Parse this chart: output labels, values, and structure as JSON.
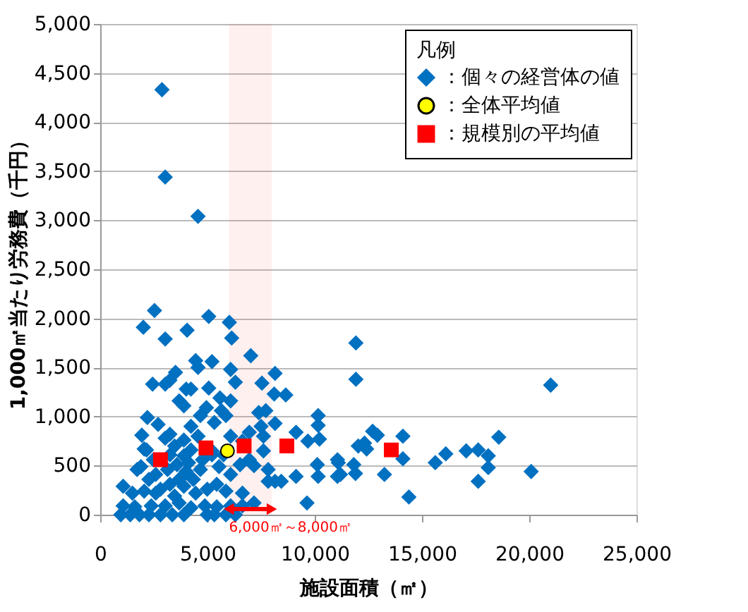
{
  "chart_data": {
    "type": "scatter",
    "xlabel": "施設面積（㎡）",
    "ylabel": "1,000㎡当たり労務費（千円）",
    "legend_title": "凡例",
    "xlim": [
      0,
      25000
    ],
    "xticks": [
      0,
      {
        "value": 5000,
        "label": "5,000"
      },
      {
        "value": 10000,
        "label": "10,000"
      },
      {
        "value": 15000,
        "label": "15,000"
      },
      {
        "value": 20000,
        "label": "20,000"
      },
      {
        "value": 25000,
        "label": "25,000"
      }
    ],
    "ylim": [
      0,
      5000
    ],
    "yticks": [
      0,
      500,
      {
        "value": 1000,
        "label": "1,000"
      },
      {
        "value": 1500,
        "label": "1,500"
      },
      {
        "value": 2000,
        "label": "2,000"
      },
      {
        "value": 2500,
        "label": "2,500"
      },
      {
        "value": 3000,
        "label": "3,000"
      },
      {
        "value": 3500,
        "label": "3,500"
      },
      {
        "value": 4000,
        "label": "4,000"
      },
      {
        "value": 4500,
        "label": "4,500"
      },
      {
        "value": 5000,
        "label": "5,000"
      }
    ],
    "grid": "y",
    "legend": "top right",
    "bands": [
      {
        "axis": "x",
        "from": 6000,
        "to": 8000,
        "label": "6,000㎡～8,000㎡",
        "color": "#ff0000"
      }
    ],
    "series": [
      {
        "name": "：個々の経営体の値",
        "color": "#0070c0",
        "marker": "diamond",
        "x": [
          2880,
          3030,
          4560,
          2530,
          2010,
          3030,
          5060,
          6020,
          4050,
          6130,
          4450,
          5210,
          4560,
          7020,
          6080,
          3510,
          2440,
          3030,
          3250,
          6300,
          8150,
          7540,
          5060,
          4010,
          4230,
          8110,
          8650,
          5580,
          3680,
          6080,
          3900,
          4950,
          5650,
          7390,
          7720,
          2200,
          4670,
          5860,
          2700,
          4230,
          5320,
          8150,
          10160,
          10160,
          9130,
          1940,
          3250,
          6950,
          7610,
          9680,
          10220,
          6630,
          2050,
          3470,
          3900,
          5210,
          7610,
          1070,
          1720,
          1900,
          2270,
          2590,
          3140,
          3580,
          4010,
          4340,
          4670,
          5540,
          6080,
          6520,
          7170,
          1500,
          2050,
          2810,
          3470,
          3900,
          4450,
          4990,
          5430,
          5860,
          6630,
          7830,
          8150,
          8440,
          9130,
          9640,
          7170,
          1070,
          1610,
          2380,
          3030,
          3680,
          4230,
          4880,
          5430,
          6080,
          6630,
          960,
          1400,
          1830,
          2270,
          2810,
          3360,
          3900,
          4990,
          5320,
          5860,
          6300,
          2590,
          3250,
          3680,
          4120,
          4770,
          5210,
          5750,
          3250,
          2480,
          2160,
          3900,
          4560,
          6080,
          3030,
          4230,
          7500,
          6950,
          7830,
          10120,
          10160,
          11100,
          11200,
          11920,
          11920,
          21000,
          11060,
          11060,
          11820,
          11900,
          12030,
          12320,
          12420,
          12700,
          12920,
          14110,
          14110,
          13250,
          14390,
          15620,
          16110,
          17060,
          17620,
          18090,
          18090,
          17620,
          18580,
          20090
        ],
        "values": [
          4330,
          3440,
          3040,
          2080,
          1910,
          1790,
          2020,
          1960,
          1880,
          1800,
          1570,
          1560,
          1500,
          1620,
          1480,
          1450,
          1330,
          1330,
          1370,
          1350,
          1440,
          1340,
          1290,
          1280,
          1280,
          1230,
          1220,
          1190,
          1160,
          1160,
          1110,
          1090,
          1060,
          1040,
          1060,
          990,
          1010,
          1010,
          920,
          900,
          940,
          930,
          1010,
          910,
          840,
          810,
          820,
          840,
          800,
          750,
          770,
          750,
          670,
          700,
          600,
          650,
          650,
          290,
          460,
          490,
          360,
          410,
          460,
          510,
          440,
          360,
          460,
          490,
          410,
          510,
          500,
          220,
          240,
          260,
          190,
          290,
          220,
          260,
          310,
          240,
          220,
          340,
          340,
          340,
          390,
          120,
          120,
          90,
          80,
          90,
          90,
          120,
          70,
          90,
          80,
          90,
          90,
          0,
          0,
          0,
          0,
          0,
          0,
          0,
          0,
          0,
          0,
          0,
          220,
          310,
          360,
          530,
          560,
          610,
          610,
          610,
          560,
          660,
          760,
          800,
          800,
          780,
          660,
          900,
          560,
          460,
          510,
          390,
          530,
          410,
          1750,
          1380,
          1320,
          560,
          390,
          510,
          420,
          700,
          730,
          670,
          850,
          810,
          800,
          570,
          410,
          180,
          530,
          620,
          650,
          660,
          600,
          480,
          340,
          790,
          440
        ]
      },
      {
        "name": "：全体平均値",
        "color": "#ffff00",
        "marker": "circle",
        "x": [
          5930
        ],
        "values": [
          650
        ]
      },
      {
        "name": "：規模別の平均値",
        "color": "#ff0000",
        "marker": "square",
        "x": [
          2810,
          4930,
          6710,
          8700,
          13570
        ],
        "values": [
          560,
          680,
          700,
          700,
          660
        ]
      }
    ]
  }
}
